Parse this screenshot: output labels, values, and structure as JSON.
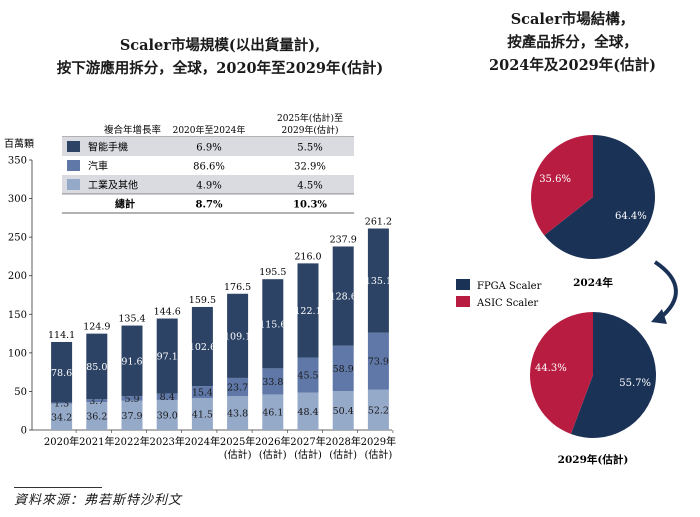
{
  "left_title": {
    "line1": "Scaler市場規模(以出貨量計),",
    "line2": "按下游應用拆分，全球，2020年至2029年(估計)"
  },
  "right_title": {
    "line1": "Scaler市場結構，",
    "line2": "按產品拆分，全球，",
    "line3": "2024年及2029年(估計)"
  },
  "source": "資料來源：弗若斯特沙利文",
  "colors": {
    "smartphone": "#2d4365",
    "auto": "#5f78a8",
    "industrial": "#95a9c9",
    "fpga": "#1b3257",
    "asic": "#b81d41",
    "table_stripe": "#d9dbe0"
  },
  "table": {
    "headers": [
      "複合年增長率",
      "2020年至2024年",
      "2025年(估計)至",
      "2029年(估計)"
    ],
    "rows": [
      {
        "name": "智能手機",
        "cagr1": "6.9%",
        "cagr2": "5.5%"
      },
      {
        "name": "汽車",
        "cagr1": "86.6%",
        "cagr2": "32.9%"
      },
      {
        "name": "工業及其他",
        "cagr1": "4.9%",
        "cagr2": "4.5%"
      }
    ],
    "total": {
      "name": "總計",
      "cagr1": "8.7%",
      "cagr2": "10.3%"
    }
  },
  "chart_data": [
    {
      "type": "bar",
      "stacked": true,
      "ylabel": "百萬顆",
      "ylim": [
        0,
        350
      ],
      "yticks": [
        0,
        50,
        100,
        150,
        200,
        250,
        300,
        350
      ],
      "categories": [
        "2020年",
        "2021年",
        "2022年",
        "2023年",
        "2024年",
        "2025年(估計)",
        "2026年(估計)",
        "2027年(估計)",
        "2028年(估計)",
        "2029年(估計)"
      ],
      "series": [
        {
          "name": "工業及其他",
          "values": [
            34.2,
            36.2,
            37.9,
            39.0,
            41.5,
            43.8,
            46.1,
            48.4,
            50.4,
            52.2
          ]
        },
        {
          "name": "汽車",
          "values": [
            1.3,
            3.7,
            5.9,
            8.4,
            15.4,
            23.7,
            33.8,
            45.5,
            58.9,
            73.9
          ]
        },
        {
          "name": "智能手機",
          "values": [
            78.6,
            85.0,
            91.6,
            97.1,
            102.6,
            109.1,
            115.6,
            122.1,
            128.6,
            135.1
          ]
        }
      ],
      "totals": [
        114.1,
        124.9,
        135.4,
        144.6,
        159.5,
        176.5,
        195.5,
        216.0,
        237.9,
        261.2
      ]
    },
    {
      "type": "pie",
      "label": "2024年",
      "slices": [
        {
          "name": "FPGA Scaler",
          "value": 64.4
        },
        {
          "name": "ASIC Scaler",
          "value": 35.6
        }
      ]
    },
    {
      "type": "pie",
      "label": "2029年(估計)",
      "slices": [
        {
          "name": "FPGA Scaler",
          "value": 55.7
        },
        {
          "name": "ASIC Scaler",
          "value": 44.3
        }
      ]
    }
  ]
}
